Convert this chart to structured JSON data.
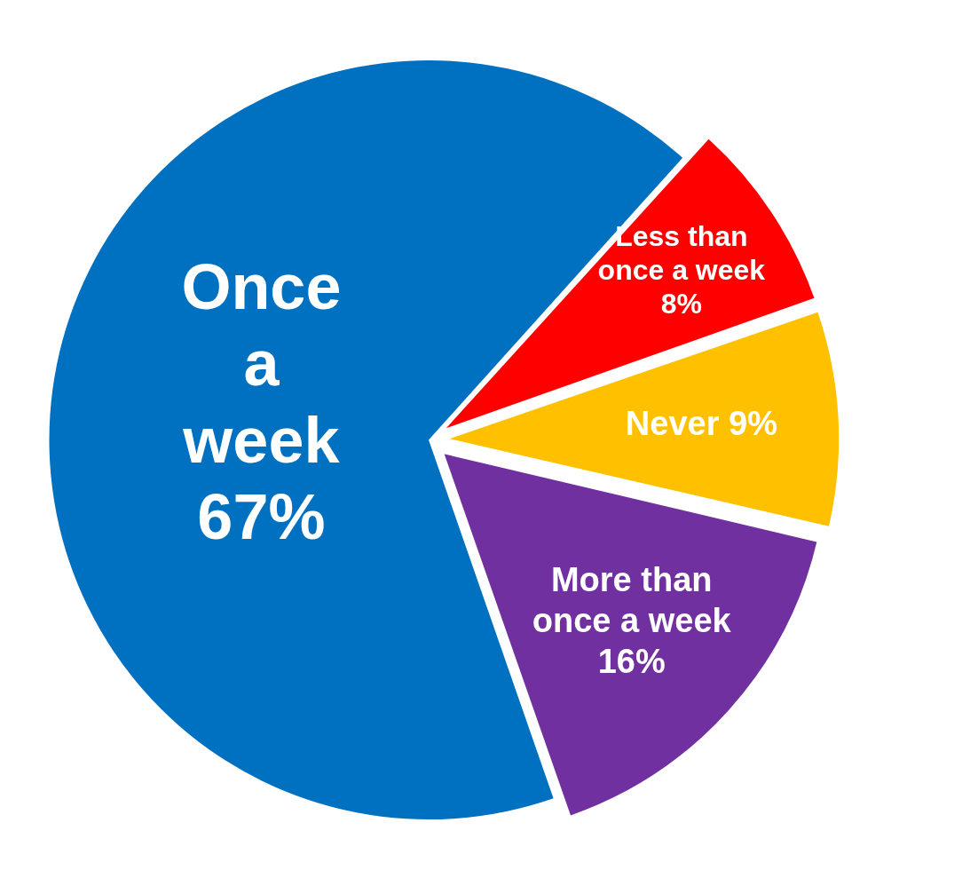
{
  "chart_data": {
    "type": "pie",
    "categories": [
      "Less than once a week",
      "Never",
      "More than once a week",
      "Once a week"
    ],
    "values": [
      8,
      9,
      16,
      67
    ],
    "colors": [
      "#ff0000",
      "#ffc000",
      "#7030a0",
      "#0070c0"
    ],
    "value_labels": [
      "8%",
      "9%",
      "16%",
      "67%"
    ],
    "legend": false
  }
}
